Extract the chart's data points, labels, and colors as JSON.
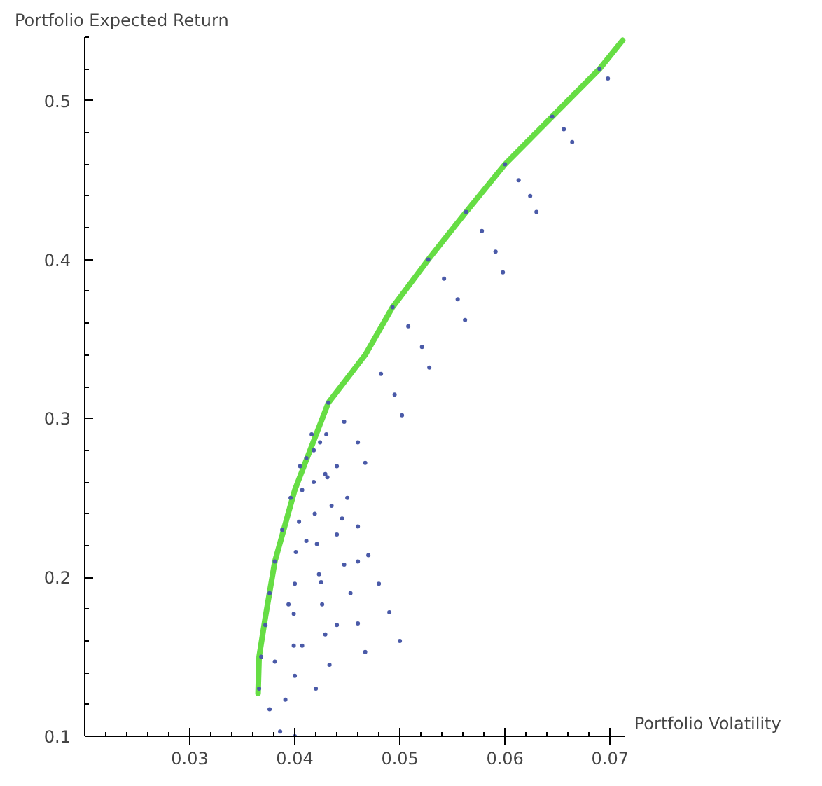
{
  "chart_data": {
    "type": "scatter",
    "xlabel": "Portfolio Volatility",
    "ylabel": "Portfolio Expected Return",
    "xlim": [
      0.02,
      0.0715
    ],
    "ylim": [
      0.1,
      0.54
    ],
    "xticks": [
      0.03,
      0.04,
      0.05,
      0.06,
      0.07
    ],
    "yticks": [
      0.1,
      0.2,
      0.3,
      0.4,
      0.5
    ],
    "grid": false,
    "marker": "circle",
    "series": [
      {
        "type": "scatter",
        "color": "#4a5aa8",
        "x": [
          0.0366,
          0.04,
          0.0433,
          0.0467,
          0.05,
          0.0368,
          0.0399,
          0.0429,
          0.046,
          0.049,
          0.0372,
          0.0399,
          0.0426,
          0.0453,
          0.048,
          0.0376,
          0.04,
          0.0423,
          0.0447,
          0.047,
          0.0381,
          0.0401,
          0.0421,
          0.044,
          0.046,
          0.0388,
          0.0404,
          0.0419,
          0.0435,
          0.045,
          0.0396,
          0.0407,
          0.0418,
          0.0429,
          0.044,
          0.0405,
          0.0411,
          0.0418,
          0.0424,
          0.043,
          0.0376,
          0.0386,
          0.0381,
          0.0391,
          0.04,
          0.0394,
          0.0407,
          0.042,
          0.0411,
          0.0425,
          0.044,
          0.0416,
          0.0431,
          0.0445,
          0.046,
          0.0432,
          0.0447,
          0.046,
          0.0467,
          0.0482,
          0.0495,
          0.0502,
          0.0493,
          0.0508,
          0.0521,
          0.0528,
          0.0527,
          0.0542,
          0.0555,
          0.0562,
          0.0563,
          0.0578,
          0.0591,
          0.0598,
          0.06,
          0.0613,
          0.0624,
          0.063,
          0.0645,
          0.0656,
          0.0664,
          0.069,
          0.0698
        ],
        "values": [
          0.13,
          0.138,
          0.145,
          0.153,
          0.16,
          0.15,
          0.157,
          0.164,
          0.171,
          0.178,
          0.17,
          0.177,
          0.183,
          0.19,
          0.196,
          0.19,
          0.196,
          0.202,
          0.208,
          0.214,
          0.21,
          0.216,
          0.221,
          0.227,
          0.232,
          0.23,
          0.235,
          0.24,
          0.245,
          0.25,
          0.25,
          0.255,
          0.26,
          0.265,
          0.27,
          0.27,
          0.275,
          0.28,
          0.285,
          0.29,
          0.117,
          0.103,
          0.147,
          0.123,
          0.1,
          0.183,
          0.157,
          0.13,
          0.223,
          0.197,
          0.17,
          0.29,
          0.263,
          0.237,
          0.21,
          0.31,
          0.298,
          0.285,
          0.272,
          0.328,
          0.315,
          0.302,
          0.37,
          0.358,
          0.345,
          0.332,
          0.4,
          0.388,
          0.375,
          0.362,
          0.43,
          0.418,
          0.405,
          0.392,
          0.46,
          0.45,
          0.44,
          0.43,
          0.49,
          0.482,
          0.474,
          0.52,
          0.514
        ]
      },
      {
        "type": "line",
        "marker": "none",
        "color": "#66dd44",
        "x": [
          0.0365,
          0.0366,
          0.0372,
          0.0381,
          0.04,
          0.0432,
          0.0467,
          0.0493,
          0.0527,
          0.0563,
          0.06,
          0.0645,
          0.069,
          0.0712
        ],
        "values": [
          0.127,
          0.15,
          0.175,
          0.21,
          0.255,
          0.31,
          0.34,
          0.37,
          0.4,
          0.43,
          0.46,
          0.49,
          0.52,
          0.538
        ]
      }
    ]
  }
}
